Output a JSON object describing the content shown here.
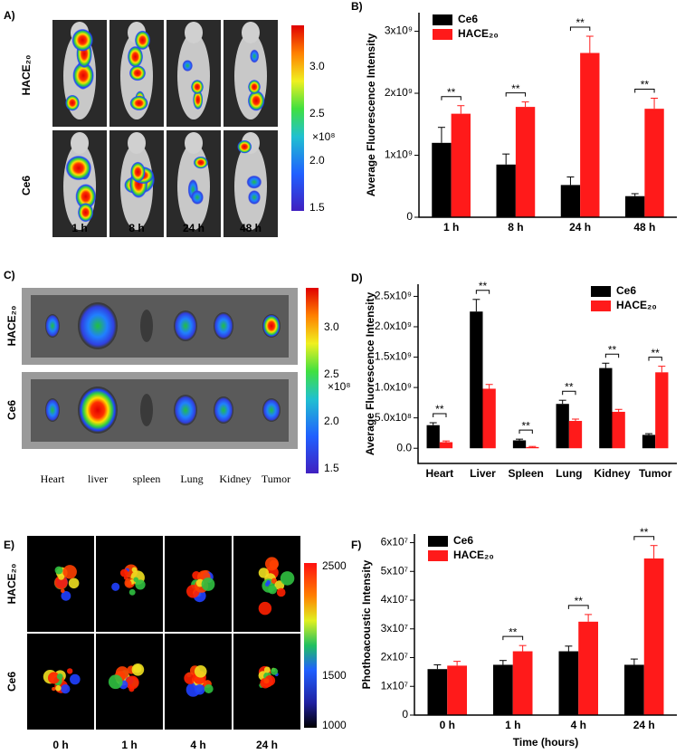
{
  "panels": {
    "A": {
      "label": "A)",
      "rows": [
        "HACE₂₀",
        "Ce6"
      ],
      "columns": [
        "1 h",
        "8 h",
        "24 h",
        "48 h"
      ],
      "colorbar": {
        "ticks": [
          "3.0",
          "2.5",
          "2.0",
          "1.5"
        ],
        "unit": "×10⁸"
      }
    },
    "C": {
      "label": "C)",
      "rows": [
        "HACE₂₀",
        "Ce6"
      ],
      "organs": [
        "Heart",
        "liver",
        "spleen",
        "Lung",
        "Kidney",
        "Tumor"
      ],
      "colorbar": {
        "ticks": [
          "3.0",
          "2.5",
          "2.0",
          "1.5"
        ],
        "unit": "×10⁸"
      }
    },
    "E": {
      "label": "E)",
      "rows": [
        "HACE₂₀",
        "Ce6"
      ],
      "columns": [
        "0 h",
        "1 h",
        "4 h",
        "24 h"
      ],
      "colorbar": {
        "ticks": [
          "2500",
          "1500",
          "1000"
        ]
      }
    }
  },
  "chart_data": [
    {
      "type": "bar",
      "label": "B)",
      "ylabel": "Average Fluorescence Intensity",
      "categories": [
        "1 h",
        "8 h",
        "24 h",
        "48 h"
      ],
      "series": [
        {
          "name": "Ce6",
          "color": "#000000",
          "values": [
            1200000000,
            850000000,
            520000000,
            340000000
          ],
          "errors": [
            250000000,
            170000000,
            130000000,
            40000000
          ]
        },
        {
          "name": "HACE₂₀",
          "color": "#ff1a1a",
          "values": [
            1670000000,
            1780000000,
            2650000000,
            1750000000
          ],
          "errors": [
            130000000,
            80000000,
            270000000,
            170000000
          ]
        }
      ],
      "significance": [
        "**",
        "**",
        "**",
        "**"
      ],
      "ylim": [
        0,
        3300000000
      ],
      "yticks": [
        0,
        {
          "value": 1000000000,
          "label": "1x10⁹"
        },
        {
          "value": 2000000000,
          "label": "2x10⁹"
        },
        {
          "value": 3000000000,
          "label": "3x10⁹"
        }
      ],
      "legend": "upper left"
    },
    {
      "type": "bar",
      "label": "D)",
      "ylabel": "Average Fluorescence Intensity",
      "categories": [
        "Heart",
        "Liver",
        "Spleen",
        "Lung",
        "Kidney",
        "Tumor"
      ],
      "series": [
        {
          "name": "Ce6",
          "color": "#000000",
          "values": [
            380000000,
            2250000000,
            130000000,
            730000000,
            1320000000,
            220000000
          ],
          "errors": [
            40000000,
            200000000,
            20000000,
            60000000,
            80000000,
            20000000
          ]
        },
        {
          "name": "HACE₂₀",
          "color": "#ff1a1a",
          "values": [
            100000000,
            980000000,
            20000000,
            450000000,
            600000000,
            1250000000
          ],
          "errors": [
            20000000,
            70000000,
            10000000,
            30000000,
            40000000,
            100000000
          ]
        }
      ],
      "significance": [
        "**",
        "**",
        "**",
        "**",
        "**",
        "**"
      ],
      "ylim": [
        -250000000,
        2700000000
      ],
      "yticks": [
        {
          "value": 0,
          "label": "0.0"
        },
        {
          "value": 500000000,
          "label": "5.0x10⁸"
        },
        {
          "value": 1000000000,
          "label": "1.0x10⁹"
        },
        {
          "value": 1500000000,
          "label": "1.5x10⁹"
        },
        {
          "value": 2000000000,
          "label": "2.0x10⁹"
        },
        {
          "value": 2500000000,
          "label": "2.5x10⁹"
        }
      ],
      "legend": "upper right"
    },
    {
      "type": "bar",
      "label": "F)",
      "ylabel": "Phothoacoustic Intensity",
      "xlabel": "Time (hours)",
      "categories": [
        "0 h",
        "1 h",
        "4 h",
        "24 h"
      ],
      "series": [
        {
          "name": "Ce6",
          "color": "#000000",
          "values": [
            16000000,
            17500000,
            22200000,
            17500000
          ],
          "errors": [
            1500000,
            1500000,
            1800000,
            2000000
          ]
        },
        {
          "name": "HACE₂₀",
          "color": "#ff1a1a",
          "values": [
            17200000,
            22200000,
            32500000,
            54500000
          ],
          "errors": [
            1500000,
            2000000,
            2500000,
            4500000
          ]
        }
      ],
      "significance": [
        null,
        "**",
        "**",
        "**"
      ],
      "ylim": [
        0,
        63000000
      ],
      "yticks": [
        0,
        {
          "value": 10000000,
          "label": "1x10⁷"
        },
        {
          "value": 20000000,
          "label": "2x10⁷"
        },
        {
          "value": 30000000,
          "label": "3x10⁷"
        },
        {
          "value": 40000000,
          "label": "4x10⁷"
        },
        {
          "value": 50000000,
          "label": "5x10⁷"
        },
        {
          "value": 60000000,
          "label": "6x10⁷"
        }
      ],
      "legend": "upper left"
    }
  ]
}
